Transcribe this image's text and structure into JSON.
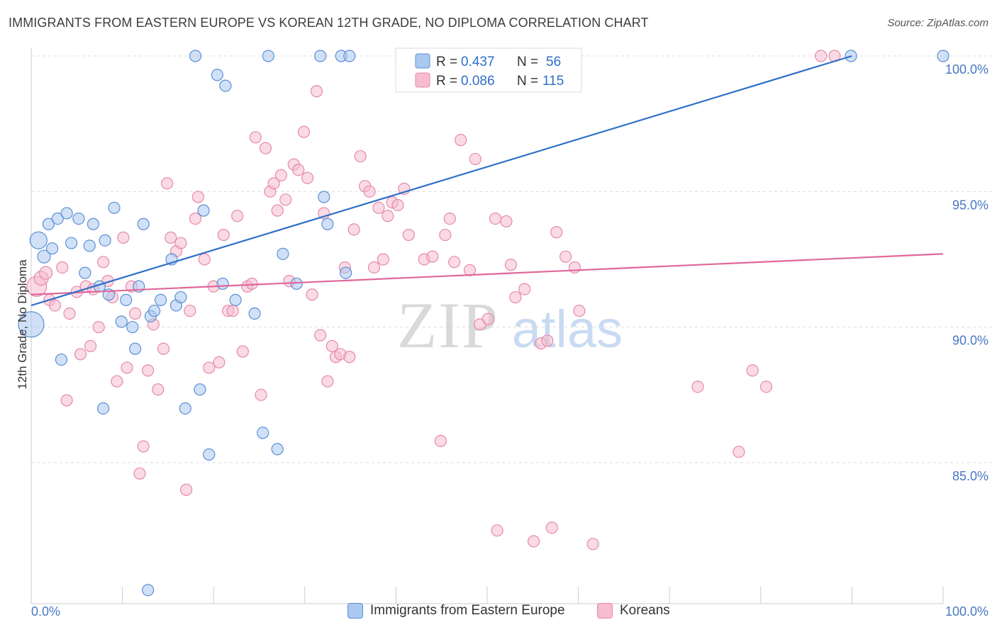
{
  "title": "IMMIGRANTS FROM EASTERN EUROPE VS KOREAN 12TH GRADE, NO DIPLOMA CORRELATION CHART",
  "source": "Source: ZipAtlas.com",
  "colors": {
    "blue_fill": "#aac8f0",
    "blue_stroke": "#5b8fd4",
    "blue_line": "#2f6fc8",
    "pink_fill": "#f6bcd0",
    "pink_stroke": "#e58aa9",
    "pink_line": "#e0689a",
    "tick_label": "#4a78c2",
    "grid": "#dcdcdc"
  },
  "legend": {
    "r_label": "R =",
    "n_label": "N =",
    "rows": [
      {
        "r": "0.437",
        "n": "56"
      },
      {
        "r": "0.086",
        "n": "115"
      }
    ]
  },
  "watermark": {
    "zip": "ZIP",
    "atlas": "atlas"
  },
  "chart_data": {
    "type": "scatter",
    "title": "IMMIGRANTS FROM EASTERN EUROPE VS KOREAN 12TH GRADE, NO DIPLOMA CORRELATION CHART",
    "xlabel": "",
    "ylabel": "12th Grade, No Diploma",
    "xlim": [
      0,
      100
    ],
    "ylim": [
      80.5,
      100.6
    ],
    "x_tick_labels": [
      "0.0%",
      "100.0%"
    ],
    "y_ticks": [
      85,
      90,
      95,
      100
    ],
    "y_tick_labels": [
      "85.0%",
      "90.0%",
      "95.0%",
      "100.0%"
    ],
    "legend_position": "top-center",
    "series": [
      {
        "name": "Immigrants from Eastern Europe",
        "color": "#aac8f0",
        "R": 0.437,
        "N": 56,
        "trend": {
          "x": [
            0,
            90
          ],
          "y": [
            90.8,
            100.0
          ]
        },
        "points": [
          [
            0,
            90.1,
            18
          ],
          [
            0.8,
            93.2,
            12
          ],
          [
            1.4,
            92.6,
            9
          ],
          [
            1.9,
            93.8,
            8
          ],
          [
            2.3,
            92.9,
            8
          ],
          [
            2.9,
            94.0,
            8
          ],
          [
            3.3,
            88.8,
            8
          ],
          [
            3.9,
            94.2,
            8
          ],
          [
            4.4,
            93.1,
            8
          ],
          [
            5.2,
            94.0,
            8
          ],
          [
            5.9,
            92.0,
            8
          ],
          [
            6.4,
            93.0,
            8
          ],
          [
            6.8,
            93.8,
            8
          ],
          [
            7.5,
            91.5,
            8
          ],
          [
            7.9,
            87.0,
            8
          ],
          [
            8.1,
            93.2,
            8
          ],
          [
            8.5,
            91.2,
            8
          ],
          [
            9.1,
            94.4,
            8
          ],
          [
            9.9,
            90.2,
            8
          ],
          [
            10.4,
            91.0,
            8
          ],
          [
            11.1,
            90.0,
            8
          ],
          [
            11.4,
            89.2,
            8
          ],
          [
            11.8,
            91.5,
            8
          ],
          [
            12.3,
            93.8,
            8
          ],
          [
            12.8,
            80.3,
            8
          ],
          [
            13.1,
            90.4,
            8
          ],
          [
            13.5,
            90.6,
            8
          ],
          [
            14.2,
            91.0,
            8
          ],
          [
            15.4,
            92.5,
            8
          ],
          [
            15.9,
            90.8,
            8
          ],
          [
            16.4,
            91.1,
            8
          ],
          [
            16.9,
            87.0,
            8
          ],
          [
            18.0,
            100.0,
            8
          ],
          [
            18.5,
            87.7,
            8
          ],
          [
            18.9,
            94.3,
            8
          ],
          [
            19.5,
            85.3,
            8
          ],
          [
            20.4,
            99.3,
            8
          ],
          [
            21.0,
            91.6,
            8
          ],
          [
            21.3,
            98.9,
            8
          ],
          [
            22.4,
            91.0,
            8
          ],
          [
            24.5,
            90.5,
            8
          ],
          [
            25.4,
            86.1,
            8
          ],
          [
            26.0,
            100.0,
            8
          ],
          [
            27.0,
            85.5,
            8
          ],
          [
            27.6,
            92.7,
            8
          ],
          [
            29.1,
            91.6,
            8
          ],
          [
            31.7,
            100.0,
            8
          ],
          [
            32.1,
            94.8,
            8
          ],
          [
            32.5,
            93.8,
            8
          ],
          [
            34.0,
            100.0,
            8
          ],
          [
            34.5,
            92.0,
            8
          ],
          [
            34.9,
            100.0,
            8
          ],
          [
            89.9,
            100.0,
            8
          ],
          [
            100,
            100.0,
            8
          ]
        ]
      },
      {
        "name": "Koreans",
        "color": "#f6bcd0",
        "R": 0.086,
        "N": 115,
        "trend": {
          "x": [
            0,
            100
          ],
          "y": [
            91.2,
            92.7
          ]
        },
        "points": [
          [
            0.6,
            91.5,
            14
          ],
          [
            1.1,
            91.8,
            10
          ],
          [
            1.6,
            92.0,
            9
          ],
          [
            2.0,
            91.0,
            8
          ],
          [
            2.6,
            90.8,
            8
          ],
          [
            3.4,
            92.2,
            8
          ],
          [
            3.9,
            87.3,
            8
          ],
          [
            4.2,
            90.5,
            8
          ],
          [
            5.0,
            91.3,
            8
          ],
          [
            5.4,
            89.0,
            8
          ],
          [
            6.0,
            91.5,
            8
          ],
          [
            6.5,
            89.3,
            8
          ],
          [
            6.8,
            91.4,
            8
          ],
          [
            7.4,
            90.0,
            8
          ],
          [
            7.9,
            92.4,
            8
          ],
          [
            8.4,
            91.7,
            8
          ],
          [
            8.9,
            91.1,
            8
          ],
          [
            9.4,
            88.0,
            8
          ],
          [
            10.1,
            93.3,
            8
          ],
          [
            10.5,
            88.5,
            8
          ],
          [
            11.0,
            91.5,
            8
          ],
          [
            11.4,
            90.5,
            8
          ],
          [
            11.9,
            84.6,
            8
          ],
          [
            12.3,
            85.6,
            8
          ],
          [
            12.8,
            88.4,
            8
          ],
          [
            13.4,
            90.1,
            8
          ],
          [
            13.9,
            87.7,
            8
          ],
          [
            14.5,
            89.2,
            8
          ],
          [
            14.9,
            95.3,
            8
          ],
          [
            15.3,
            93.3,
            8
          ],
          [
            15.9,
            92.8,
            8
          ],
          [
            16.4,
            93.1,
            8
          ],
          [
            17.0,
            84.0,
            8
          ],
          [
            17.4,
            90.6,
            8
          ],
          [
            18.0,
            94.0,
            8
          ],
          [
            18.3,
            94.8,
            8
          ],
          [
            19.0,
            92.5,
            8
          ],
          [
            19.5,
            88.5,
            8
          ],
          [
            20.0,
            91.5,
            8
          ],
          [
            20.6,
            88.7,
            8
          ],
          [
            21.1,
            93.4,
            8
          ],
          [
            21.6,
            90.6,
            8
          ],
          [
            22.1,
            90.6,
            8
          ],
          [
            22.6,
            94.1,
            8
          ],
          [
            23.2,
            89.1,
            8
          ],
          [
            23.7,
            91.5,
            8
          ],
          [
            24.2,
            91.6,
            8
          ],
          [
            24.6,
            97.0,
            8
          ],
          [
            25.2,
            87.5,
            8
          ],
          [
            25.7,
            96.6,
            8
          ],
          [
            26.2,
            95.0,
            8
          ],
          [
            26.6,
            95.3,
            8
          ],
          [
            27.0,
            94.3,
            8
          ],
          [
            27.4,
            95.6,
            8
          ],
          [
            27.9,
            94.7,
            8
          ],
          [
            28.3,
            91.7,
            8
          ],
          [
            28.8,
            96.0,
            8
          ],
          [
            29.3,
            95.8,
            8
          ],
          [
            29.9,
            97.2,
            8
          ],
          [
            30.3,
            95.5,
            8
          ],
          [
            30.8,
            91.2,
            8
          ],
          [
            31.3,
            98.7,
            8
          ],
          [
            31.7,
            89.7,
            8
          ],
          [
            32.1,
            94.2,
            8
          ],
          [
            32.5,
            88.0,
            8
          ],
          [
            33.0,
            89.3,
            8
          ],
          [
            33.4,
            88.9,
            8
          ],
          [
            33.9,
            89.0,
            8
          ],
          [
            34.4,
            92.2,
            8
          ],
          [
            34.9,
            88.9,
            8
          ],
          [
            35.4,
            93.6,
            8
          ],
          [
            36.1,
            96.3,
            8
          ],
          [
            36.6,
            95.2,
            8
          ],
          [
            37.1,
            95.0,
            8
          ],
          [
            37.6,
            92.2,
            8
          ],
          [
            38.1,
            94.4,
            8
          ],
          [
            38.6,
            92.5,
            8
          ],
          [
            39.1,
            94.1,
            8
          ],
          [
            39.6,
            94.6,
            8
          ],
          [
            40.2,
            94.5,
            8
          ],
          [
            40.9,
            95.1,
            8
          ],
          [
            41.4,
            93.4,
            8
          ],
          [
            42.1,
            100.0,
            8
          ],
          [
            43.1,
            92.5,
            8
          ],
          [
            44.0,
            92.6,
            8
          ],
          [
            44.9,
            85.8,
            8
          ],
          [
            45.4,
            93.4,
            8
          ],
          [
            45.9,
            94.0,
            8
          ],
          [
            46.4,
            92.4,
            8
          ],
          [
            47.1,
            96.9,
            8
          ],
          [
            48.1,
            92.1,
            8
          ],
          [
            48.7,
            96.2,
            8
          ],
          [
            49.2,
            90.1,
            8
          ],
          [
            50.1,
            90.3,
            8
          ],
          [
            50.9,
            94.0,
            8
          ],
          [
            51.1,
            82.5,
            8
          ],
          [
            52.1,
            93.9,
            8
          ],
          [
            52.6,
            92.3,
            8
          ],
          [
            53.1,
            91.1,
            8
          ],
          [
            54.1,
            91.4,
            8
          ],
          [
            55.1,
            82.1,
            8
          ],
          [
            55.9,
            89.4,
            8
          ],
          [
            56.6,
            89.5,
            8
          ],
          [
            57.1,
            82.6,
            8
          ],
          [
            57.6,
            93.5,
            8
          ],
          [
            58.6,
            92.6,
            8
          ],
          [
            59.6,
            92.2,
            8
          ],
          [
            60.1,
            90.6,
            8
          ],
          [
            61.6,
            82.0,
            8
          ],
          [
            73.1,
            87.8,
            8
          ],
          [
            77.6,
            85.4,
            8
          ],
          [
            79.1,
            88.4,
            8
          ],
          [
            80.6,
            87.8,
            8
          ],
          [
            86.6,
            100.0,
            8
          ],
          [
            88.1,
            100.0,
            8
          ]
        ]
      }
    ]
  }
}
